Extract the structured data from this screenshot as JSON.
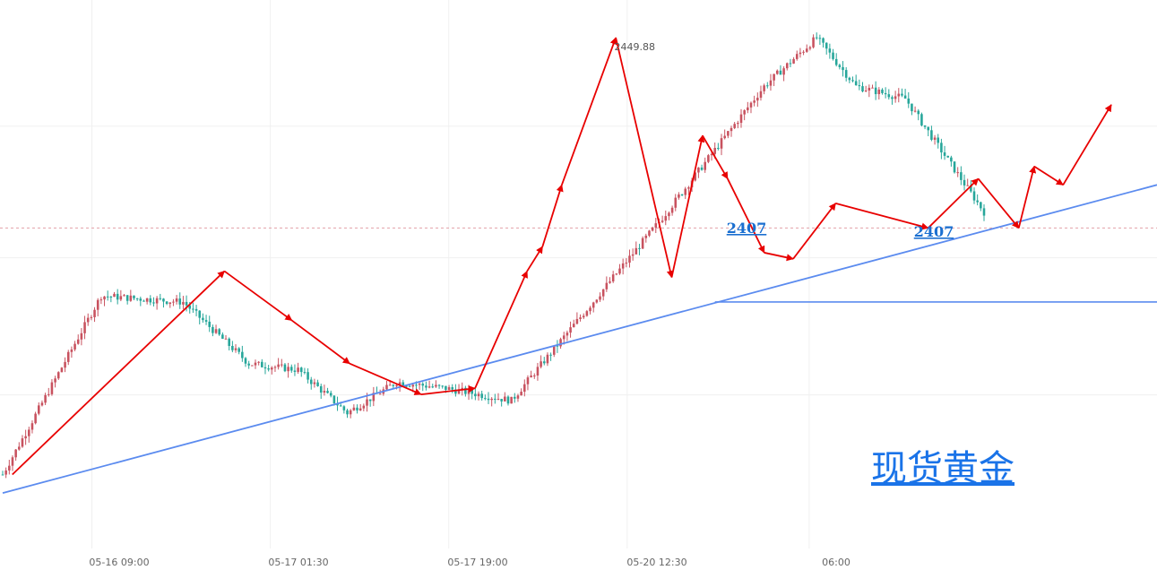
{
  "chart_data": {
    "type": "candlestick",
    "title": "现货黄金",
    "x_tick_labels": [
      "05-16 09:00",
      "05-17 01:30",
      "05-17 19:00",
      "05-20 12:30",
      "06:00"
    ],
    "ylim": [
      2367,
      2456
    ],
    "peak_label": "2449.88",
    "peak_value": 2449.88,
    "current_price": 2419,
    "support_level": 2407,
    "support_labels": [
      "2407",
      "2407"
    ],
    "candle_count": 300,
    "candle_up_color": "#c8525f",
    "candle_down_color": "#26a69a",
    "trendline_color": "#5b8bef",
    "arrow_color": "#e80000",
    "price_path": [
      [
        0,
        2379
      ],
      [
        30,
        2408
      ],
      [
        55,
        2407
      ],
      [
        75,
        2397
      ],
      [
        90,
        2396
      ],
      [
        105,
        2389
      ],
      [
        120,
        2394
      ],
      [
        135,
        2393
      ],
      [
        155,
        2391
      ],
      [
        200,
        2420
      ],
      [
        232,
        2442
      ],
      [
        248,
        2449.88
      ],
      [
        260,
        2442
      ],
      [
        275,
        2440
      ],
      [
        305,
        2417
      ],
      [
        327,
        2441
      ],
      [
        335,
        2435
      ],
      [
        355,
        2431
      ],
      [
        385,
        2424
      ],
      [
        405,
        2411
      ],
      [
        440,
        2415
      ],
      [
        455,
        2416
      ],
      [
        475,
        2412
      ],
      [
        492,
        2421
      ]
    ],
    "rising_trendline": [
      [
        0,
        2376
      ],
      [
        645,
        2426
      ]
    ],
    "wave_path": [
      [
        5,
        2379
      ],
      [
        115,
        2412
      ],
      [
        150,
        2404
      ],
      [
        180,
        2397
      ],
      [
        217,
        2392
      ],
      [
        245,
        2393
      ],
      [
        272,
        2412
      ],
      [
        280,
        2416
      ],
      [
        290,
        2426
      ],
      [
        318,
        2449.88
      ],
      [
        347,
        2411
      ],
      [
        363,
        2434
      ],
      [
        376,
        2427
      ],
      [
        395,
        2415
      ],
      [
        410,
        2414
      ],
      [
        432,
        2423
      ],
      [
        480,
        2419
      ],
      [
        506,
        2427
      ],
      [
        527,
        2419
      ],
      [
        535,
        2429
      ],
      [
        550,
        2426
      ],
      [
        575,
        2439
      ]
    ]
  }
}
